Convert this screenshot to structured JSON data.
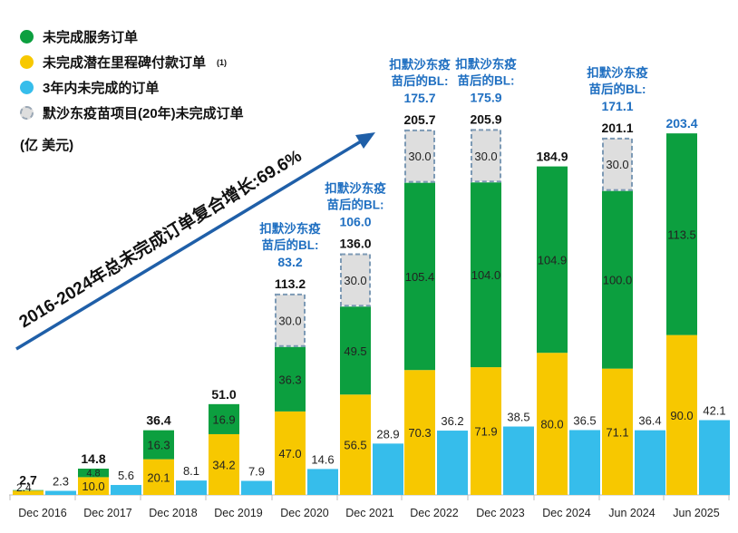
{
  "legend": [
    {
      "label": "未完成服务订单",
      "sup": "",
      "color": "#0c9f3f",
      "style": "solid"
    },
    {
      "label": "未完成潜在里程碑付款订单",
      "sup": "(1)",
      "color": "#f7c800",
      "style": "solid"
    },
    {
      "label": "3年内未完成的订单",
      "sup": "",
      "color": "#36bdeb",
      "style": "solid"
    },
    {
      "label": "默沙东疫苗项目(20年)未完成订单",
      "sup": "",
      "color": "#dedede",
      "style": "dashed"
    }
  ],
  "unit_label": "(亿 美元)",
  "cagr_label": "2016-2024年总未完成订单复合增长:69.6%",
  "chart_data": {
    "type": "bar",
    "categories": [
      "Dec 2016",
      "Dec 2017",
      "Dec 2018",
      "Dec 2019",
      "Dec 2020",
      "Dec 2021",
      "Dec 2022",
      "Dec 2023",
      "Dec 2024",
      "Jun 2024",
      "Jun 2025"
    ],
    "series": [
      {
        "name": "未完成潜在里程碑付款订单",
        "values": [
          2.4,
          10.0,
          20.1,
          34.2,
          47.0,
          56.5,
          70.3,
          71.9,
          80.0,
          71.1,
          90.0
        ]
      },
      {
        "name": "未完成服务订单",
        "values": [
          0.3,
          4.8,
          16.3,
          16.9,
          36.3,
          49.5,
          105.4,
          104.0,
          104.9,
          100.0,
          113.5
        ]
      },
      {
        "name": "默沙东疫苗项目(20年)未完成订单",
        "values": [
          0,
          0,
          0,
          0,
          30.0,
          30.0,
          30.0,
          30.0,
          0,
          30.0,
          0
        ]
      },
      {
        "name": "3年内未完成的订单",
        "values": [
          2.3,
          5.6,
          8.1,
          7.9,
          14.6,
          28.9,
          36.2,
          38.5,
          36.5,
          36.4,
          42.1
        ]
      }
    ],
    "totals": [
      "2.7",
      "14.8",
      "36.4",
      "51.0",
      "113.2",
      "136.0",
      "205.7",
      "205.9",
      "184.9",
      "201.1",
      "203.4"
    ],
    "total_colors": [
      "#111111",
      "#111111",
      "#111111",
      "#111111",
      "#111111",
      "#111111",
      "#111111",
      "#111111",
      "#111111",
      "#111111",
      "#1f6fc1"
    ],
    "segment_labels": {
      "yellow": [
        "2.4",
        "10.0",
        "20.1",
        "34.2",
        "47.0",
        "56.5",
        "70.3",
        "71.9",
        "80.0",
        "71.1",
        "90.0"
      ],
      "green": [
        "",
        "4.8",
        "16.3",
        "16.9",
        "36.3",
        "49.5",
        "105.4",
        "104.0",
        "104.9",
        "100.0",
        "113.5"
      ],
      "gray": [
        "",
        "",
        "",
        "",
        "30.0",
        "30.0",
        "30.0",
        "30.0",
        "",
        "30.0",
        ""
      ],
      "blue": [
        "2.3",
        "5.6",
        "8.1",
        "7.9",
        "14.6",
        "28.9",
        "36.2",
        "38.5",
        "36.5",
        "36.4",
        "42.1"
      ]
    },
    "annotations": [
      {
        "index": 4,
        "lines": [
          "扣默沙东疫",
          "苗后的BL:"
        ],
        "value": "83.2"
      },
      {
        "index": 5,
        "lines": [
          "扣默沙东疫",
          "苗后的BL:"
        ],
        "value": "106.0"
      },
      {
        "index": 6,
        "lines": [
          "扣默沙东疫",
          "苗后的BL:"
        ],
        "value": "175.7"
      },
      {
        "index": 7,
        "lines": [
          "扣默沙东疫",
          "苗后的BL:"
        ],
        "value": "175.9"
      },
      {
        "index": 9,
        "lines": [
          "扣默沙东疫",
          "苗后的BL:"
        ],
        "value": "171.1"
      }
    ],
    "ylim": [
      0,
      210
    ],
    "colors": {
      "yellow": "#f7c800",
      "green": "#0c9f3f",
      "gray": "#dedede",
      "blue": "#36bdeb",
      "annotation": "#1f6fc1"
    }
  }
}
